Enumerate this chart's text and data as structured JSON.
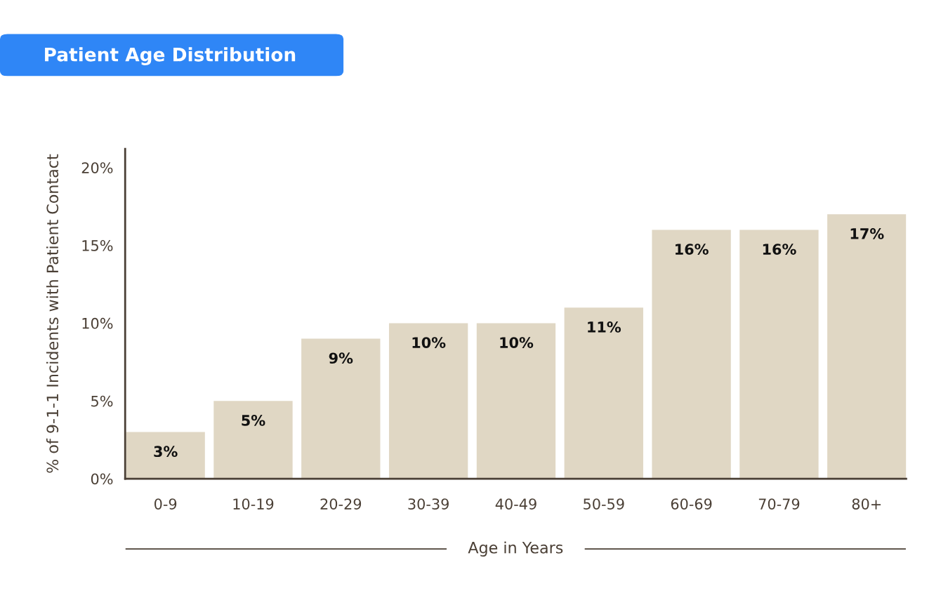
{
  "chart_data": {
    "type": "bar",
    "title": "Patient Age Distribution",
    "xlabel": "Age in Years",
    "ylabel": "% of 9-1-1 Incidents with Patient Contact",
    "categories": [
      "0-9",
      "10-19",
      "20-29",
      "30-39",
      "40-49",
      "50-59",
      "60-69",
      "70-79",
      "80+"
    ],
    "values": [
      3,
      5,
      9,
      10,
      10,
      11,
      16,
      16,
      17
    ],
    "value_labels": [
      "3%",
      "5%",
      "9%",
      "10%",
      "10%",
      "11%",
      "16%",
      "16%",
      "17%"
    ],
    "color": "#e0d7c4",
    "ylim": [
      0,
      21.2
    ],
    "yticks": [
      {
        "value": 0,
        "label": "0%"
      },
      {
        "value": 5,
        "label": "5%"
      },
      {
        "value": 10,
        "label": "10%"
      },
      {
        "value": 15,
        "label": "15%"
      },
      {
        "value": 20,
        "label": "20%"
      }
    ],
    "grid": false,
    "legend": false
  }
}
